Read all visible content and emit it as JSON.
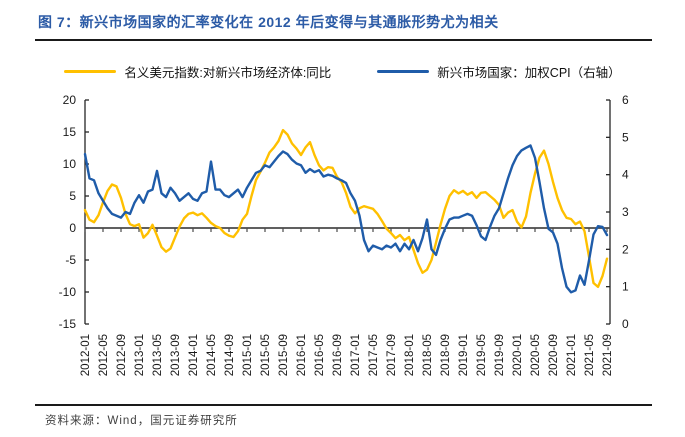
{
  "header": {
    "title": "图 7：新兴市场国家的汇率变化在 2012 年后变得与其通胀形势尤为相关"
  },
  "legend": {
    "items": [
      {
        "label": "名义美元指数:对新兴市场经济体:同比",
        "color": "#FFC000"
      },
      {
        "label": "新兴市场国家：加权CPI（右轴）",
        "color": "#1F5CA9"
      }
    ]
  },
  "footer": {
    "source": "资料来源：Wind，国元证券研究所"
  },
  "chart_data": {
    "type": "line",
    "title": "图 7：新兴市场国家的汇率变化在 2012 年后变得与其通胀形势尤为相关",
    "x": [
      "2012-01",
      "2012-02",
      "2012-03",
      "2012-04",
      "2012-05",
      "2012-06",
      "2012-07",
      "2012-08",
      "2012-09",
      "2012-10",
      "2012-11",
      "2012-12",
      "2013-01",
      "2013-02",
      "2013-03",
      "2013-04",
      "2013-05",
      "2013-06",
      "2013-07",
      "2013-08",
      "2013-09",
      "2013-10",
      "2013-11",
      "2013-12",
      "2014-01",
      "2014-02",
      "2014-03",
      "2014-04",
      "2014-05",
      "2014-06",
      "2014-07",
      "2014-08",
      "2014-09",
      "2014-10",
      "2014-11",
      "2014-12",
      "2015-01",
      "2015-02",
      "2015-03",
      "2015-04",
      "2015-05",
      "2015-06",
      "2015-07",
      "2015-08",
      "2015-09",
      "2015-10",
      "2015-11",
      "2015-12",
      "2016-01",
      "2016-02",
      "2016-03",
      "2016-04",
      "2016-05",
      "2016-06",
      "2016-07",
      "2016-08",
      "2016-09",
      "2016-10",
      "2016-11",
      "2016-12",
      "2017-01",
      "2017-02",
      "2017-03",
      "2017-04",
      "2017-05",
      "2017-06",
      "2017-07",
      "2017-08",
      "2017-09",
      "2017-10",
      "2017-11",
      "2017-12",
      "2018-01",
      "2018-02",
      "2018-03",
      "2018-04",
      "2018-05",
      "2018-06",
      "2018-07",
      "2018-08",
      "2018-09",
      "2018-10",
      "2018-11",
      "2018-12",
      "2019-01",
      "2019-02",
      "2019-03",
      "2019-04",
      "2019-05",
      "2019-06",
      "2019-07",
      "2019-08",
      "2019-09",
      "2019-10",
      "2019-11",
      "2019-12",
      "2020-01",
      "2020-02",
      "2020-03",
      "2020-04",
      "2020-05",
      "2020-06",
      "2020-07",
      "2020-08",
      "2020-09",
      "2020-10",
      "2020-11",
      "2020-12",
      "2021-01",
      "2021-02",
      "2021-03",
      "2021-04",
      "2021-05",
      "2021-06",
      "2021-07",
      "2021-08",
      "2021-09"
    ],
    "x_tick_step": 4,
    "x_tick_labels": [
      "2012-01",
      "2012-05",
      "2012-09",
      "2013-01",
      "2013-05",
      "2013-09",
      "2014-01",
      "2014-05",
      "2014-09",
      "2015-01",
      "2015-05",
      "2015-09",
      "2016-01",
      "2016-05",
      "2016-09",
      "2017-01",
      "2017-05",
      "2017-09",
      "2018-01",
      "2018-05",
      "2018-09",
      "2019-01",
      "2019-05",
      "2019-09",
      "2020-01",
      "2020-05",
      "2020-09",
      "2021-01",
      "2021-05",
      "2021-09"
    ],
    "series": [
      {
        "name": "名义美元指数:对新兴市场经济体:同比",
        "axis": "left",
        "color": "#FFC000",
        "values": [
          2.8,
          1.3,
          0.9,
          2.0,
          4.0,
          5.8,
          6.8,
          6.5,
          4.7,
          2.2,
          0.6,
          0.3,
          0.6,
          -1.5,
          -0.8,
          0.5,
          -1.2,
          -3.0,
          -3.7,
          -3.2,
          -1.5,
          0.2,
          1.5,
          2.2,
          2.4,
          2.0,
          2.3,
          1.6,
          0.8,
          0.3,
          0.0,
          -0.8,
          -1.2,
          -1.4,
          -0.5,
          1.3,
          2.2,
          5.0,
          7.5,
          8.8,
          10.2,
          11.8,
          12.6,
          13.6,
          15.3,
          14.6,
          13.2,
          12.4,
          11.4,
          12.6,
          13.4,
          11.4,
          9.8,
          9.0,
          9.5,
          9.4,
          8.0,
          7.2,
          5.5,
          3.3,
          2.3,
          3.1,
          3.4,
          3.2,
          3.0,
          2.2,
          1.1,
          -0.1,
          -0.8,
          -1.6,
          -1.1,
          -1.9,
          -1.4,
          -3.4,
          -5.5,
          -7.0,
          -6.5,
          -5.0,
          -2.3,
          0.5,
          3.0,
          5.0,
          5.9,
          5.4,
          5.8,
          5.2,
          5.6,
          4.7,
          5.5,
          5.6,
          5.0,
          4.4,
          3.6,
          1.6,
          2.4,
          2.8,
          1.0,
          0.1,
          1.8,
          5.5,
          8.5,
          11.0,
          12.1,
          10.0,
          7.2,
          4.7,
          2.8,
          1.6,
          1.4,
          0.6,
          1.0,
          -0.5,
          -4.5,
          -8.6,
          -9.2,
          -7.5,
          -4.8
        ]
      },
      {
        "name": "新兴市场国家：加权CPI（右轴）",
        "axis": "right",
        "color": "#1F5CA9",
        "values": [
          4.55,
          3.9,
          3.85,
          3.5,
          3.3,
          3.1,
          2.95,
          2.9,
          2.85,
          3.0,
          2.95,
          3.25,
          3.45,
          3.25,
          3.55,
          3.6,
          4.1,
          3.5,
          3.4,
          3.65,
          3.5,
          3.3,
          3.4,
          3.5,
          3.35,
          3.3,
          3.5,
          3.55,
          4.35,
          3.6,
          3.6,
          3.45,
          3.4,
          3.5,
          3.6,
          3.4,
          3.65,
          3.85,
          4.05,
          4.1,
          4.25,
          4.2,
          4.35,
          4.5,
          4.62,
          4.55,
          4.4,
          4.3,
          4.25,
          4.05,
          4.15,
          4.07,
          4.12,
          3.95,
          4.0,
          3.97,
          3.9,
          3.85,
          3.78,
          3.5,
          3.3,
          2.9,
          2.25,
          1.95,
          2.1,
          2.05,
          2.0,
          2.1,
          2.05,
          2.15,
          1.95,
          2.15,
          2.0,
          2.25,
          1.95,
          2.3,
          2.8,
          2.0,
          1.85,
          2.25,
          2.55,
          2.8,
          2.85,
          2.85,
          2.9,
          2.95,
          2.9,
          2.65,
          2.35,
          2.25,
          2.6,
          2.9,
          3.1,
          3.5,
          3.9,
          4.25,
          4.5,
          4.65,
          4.72,
          4.78,
          4.45,
          3.8,
          3.1,
          2.55,
          2.45,
          2.15,
          1.5,
          1.0,
          0.85,
          0.9,
          1.3,
          1.05,
          1.7,
          2.4,
          2.62,
          2.6,
          2.38
        ]
      }
    ],
    "left_axis": {
      "min": -15,
      "max": 20,
      "ticks": [
        20,
        15,
        10,
        5,
        0,
        -5,
        -10,
        -15
      ]
    },
    "right_axis": {
      "min": 0,
      "max": 6,
      "ticks": [
        6,
        5,
        4,
        3,
        2,
        1,
        0
      ]
    },
    "grid": false,
    "legend_position": "top",
    "category_axis_at_zero": true,
    "axis_color": "#262626",
    "zero_line_color": "#4a4a4a",
    "tick_label_color": "#1a1a1a"
  }
}
